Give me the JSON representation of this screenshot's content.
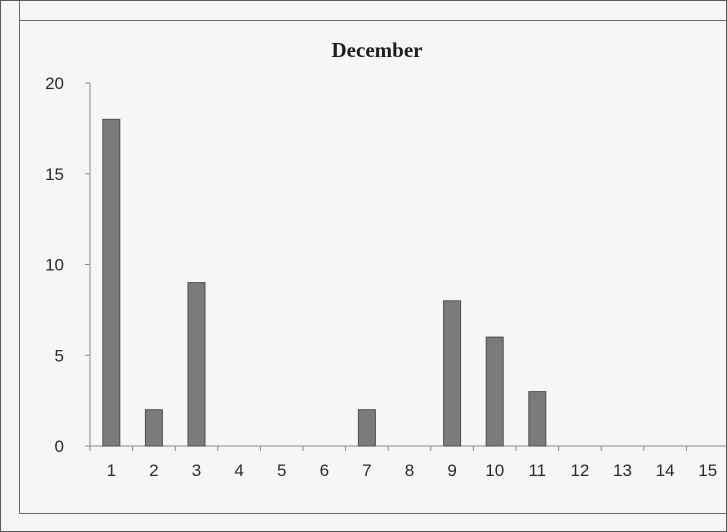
{
  "chart_data": {
    "type": "bar",
    "title": "December",
    "xlabel": "",
    "ylabel": "",
    "categories": [
      "1",
      "2",
      "3",
      "4",
      "5",
      "6",
      "7",
      "8",
      "9",
      "10",
      "11",
      "12",
      "13",
      "14",
      "15"
    ],
    "values": [
      18,
      2,
      9,
      0,
      0,
      0,
      2,
      0,
      8,
      6,
      3,
      0,
      0,
      0,
      0
    ],
    "ylim": [
      0,
      20
    ],
    "yticks": [
      "0",
      "5",
      "10",
      "15",
      "20"
    ],
    "grid": false,
    "legend": "none",
    "colors": {
      "bar": "#7b7b7b",
      "bar_edge": "#4f4f4f",
      "axis": "#8a8a8a"
    }
  }
}
